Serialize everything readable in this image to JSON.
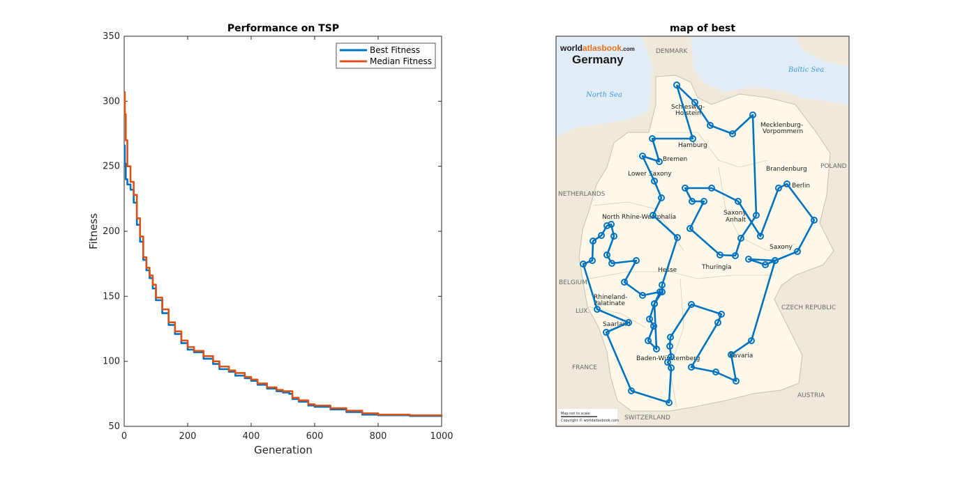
{
  "chart_data": [
    {
      "type": "line",
      "title": "Performance on TSP",
      "xlabel": "Generation",
      "ylabel": "Fitness",
      "xlim": [
        0,
        1000
      ],
      "ylim": [
        50,
        350
      ],
      "xticks": [
        "0",
        "200",
        "400",
        "600",
        "800",
        "1000"
      ],
      "yticks": [
        "50",
        "100",
        "150",
        "200",
        "250",
        "300",
        "350"
      ],
      "legend_position": "top-right",
      "grid": false,
      "series": [
        {
          "name": "Best Fitness",
          "color": "#0072BD",
          "x": [
            0,
            2,
            5,
            10,
            20,
            30,
            40,
            50,
            60,
            70,
            80,
            90,
            100,
            120,
            140,
            160,
            180,
            200,
            220,
            250,
            280,
            300,
            330,
            350,
            380,
            400,
            420,
            450,
            480,
            500,
            520,
            530,
            550,
            580,
            600,
            650,
            700,
            750,
            800,
            900,
            1000
          ],
          "y": [
            266,
            252,
            240,
            236,
            232,
            222,
            205,
            192,
            178,
            170,
            164,
            156,
            147,
            137,
            128,
            121,
            114,
            109,
            107,
            102,
            98,
            94,
            92,
            89,
            87,
            85,
            82,
            79,
            77,
            76,
            75,
            71,
            69,
            66,
            65,
            63,
            61,
            59,
            58.5,
            58,
            57.5
          ]
        },
        {
          "name": "Median Fitness",
          "color": "#D95319",
          "x": [
            0,
            2,
            5,
            10,
            20,
            30,
            40,
            50,
            60,
            70,
            80,
            90,
            100,
            120,
            140,
            160,
            180,
            200,
            220,
            250,
            280,
            300,
            330,
            350,
            380,
            400,
            420,
            450,
            480,
            500,
            520,
            530,
            550,
            580,
            600,
            650,
            700,
            750,
            800,
            900,
            1000
          ],
          "y": [
            307,
            290,
            270,
            250,
            238,
            228,
            210,
            196,
            180,
            172,
            166,
            159,
            149,
            140,
            130,
            123,
            116,
            111,
            108,
            104,
            100,
            96,
            93,
            91,
            88,
            86,
            83,
            80,
            78,
            77,
            77,
            72,
            70,
            67,
            66,
            64,
            62,
            60,
            59,
            58.5,
            58
          ]
        }
      ]
    },
    {
      "type": "scatter",
      "title": "map of best",
      "map_text": {
        "brand_a": "world",
        "brand_b": "atlasbook",
        "brand_c": ".com",
        "country": "Germany",
        "sea_north": "North Sea",
        "sea_baltic": "Baltic Sea",
        "denmark": "DENMARK",
        "netherlands": "NETHERLANDS",
        "belgium": "BELGIUM",
        "lux": "LUX.",
        "france": "FRANCE",
        "switzerland": "SWITZERLAND",
        "austria": "AUSTRIA",
        "czech": "CZECH REPUBLIC",
        "poland": "POLAND",
        "schleswig": "Schleswig-",
        "holstein": "Holstein",
        "mecklenburg": "Mecklenburg-",
        "vorpommern": "Vorpommern",
        "hamburg": "Hamburg",
        "bremen": "Bremen",
        "lower_saxony": "Lower Saxony",
        "brandenburg": "Brandenburg",
        "berlin": "Berlin",
        "saxony_anhalt_a": "Saxony",
        "saxony_anhalt_b": "Anhalt",
        "nrw": "North Rhine-Westphalia",
        "saxony": "Saxony",
        "thuringia": "Thuringia",
        "hesse": "Hesse",
        "rhineland_a": "Rhineland-",
        "rhineland_b": "Palatinate",
        "saarland": "Saarland",
        "bavaria": "Bavaria",
        "baden": "Baden-Württemberg",
        "copyright": "Copyright © worldatlasbook.com",
        "scale": "Map not to scale"
      },
      "route_color": "#0072BD",
      "route": [
        [
          970,
          122
        ],
        [
          996,
          147
        ],
        [
          1018,
          180
        ],
        [
          1050,
          192
        ],
        [
          1079,
          165
        ],
        [
          1084,
          309
        ],
        [
          1062,
          342
        ],
        [
          1054,
          367
        ],
        [
          1032,
          366
        ],
        [
          989,
          328
        ],
        [
          1009,
          289
        ],
        [
          992,
          289
        ],
        [
          982,
          270
        ],
        [
          1020,
          270
        ],
        [
          1058,
          289
        ],
        [
          1090,
          339
        ],
        [
          1116,
          270
        ],
        [
          1128,
          264
        ],
        [
          1167,
          316
        ],
        [
          1143,
          361
        ],
        [
          1111,
          374
        ],
        [
          1097,
          380
        ],
        [
          1073,
          372
        ],
        [
          1111,
          374
        ],
        [
          1077,
          489
        ],
        [
          1048,
          509
        ],
        [
          1055,
          547
        ],
        [
          1026,
          534
        ],
        [
          991,
          527
        ],
        [
          1029,
          463
        ],
        [
          1034,
          451
        ],
        [
          991,
          437
        ],
        [
          961,
          484
        ],
        [
          960,
          497
        ],
        [
          962,
          512
        ],
        [
          957,
          520
        ],
        [
          962,
          528
        ],
        [
          959,
          578
        ],
        [
          905,
          561
        ],
        [
          869,
          477
        ],
        [
          901,
          463
        ],
        [
          856,
          444
        ],
        [
          836,
          379
        ],
        [
          849,
          374
        ],
        [
          850,
          346
        ],
        [
          862,
          338
        ],
        [
          870,
          324
        ],
        [
          876,
          322
        ],
        [
          880,
          339
        ],
        [
          870,
          366
        ],
        [
          877,
          378
        ],
        [
          912,
          374
        ],
        [
          895,
          405
        ],
        [
          921,
          424
        ],
        [
          946,
          419
        ],
        [
          938,
          436
        ],
        [
          931,
          458
        ],
        [
          937,
          468
        ],
        [
          929,
          489
        ],
        [
          941,
          501
        ],
        [
          938,
          436
        ],
        [
          949,
          419
        ],
        [
          949,
          409
        ],
        [
          971,
          341
        ],
        [
          936,
          309
        ],
        [
          948,
          284
        ],
        [
          938,
          260
        ],
        [
          921,
          224
        ],
        [
          945,
          232
        ],
        [
          935,
          199
        ],
        [
          993,
          199
        ],
        [
          970,
          122
        ]
      ]
    }
  ]
}
